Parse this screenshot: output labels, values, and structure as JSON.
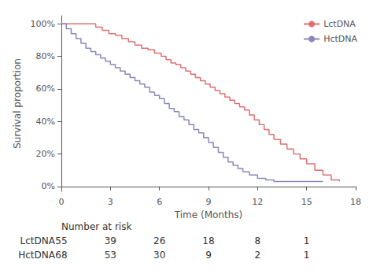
{
  "chart_data": {
    "type": "step",
    "xlabel": "Time (Months)",
    "ylabel": "Survival proportion",
    "xlim": [
      0,
      18
    ],
    "xticks": [
      0,
      3,
      6,
      9,
      12,
      15,
      18
    ],
    "ylim": [
      -0.03,
      1.05
    ],
    "yticks": [
      {
        "value": 0.0,
        "label": "0%"
      },
      {
        "value": 0.2,
        "label": "20%"
      },
      {
        "value": 0.4,
        "label": "40%"
      },
      {
        "value": 0.6,
        "label": "60%"
      },
      {
        "value": 0.8,
        "label": "80%"
      },
      {
        "value": 1.0,
        "label": "100%"
      }
    ],
    "grid": false,
    "legend": "upper right",
    "series": [
      {
        "name": "LctDNA",
        "color": "#E07070",
        "x": [
          0.0,
          1.8,
          2.1,
          2.5,
          2.9,
          3.3,
          3.7,
          4.1,
          4.5,
          4.9,
          5.3,
          5.7,
          6.1,
          6.4,
          6.7,
          7.0,
          7.3,
          7.6,
          7.9,
          8.2,
          8.5,
          8.8,
          9.1,
          9.4,
          9.7,
          10.0,
          10.3,
          10.6,
          10.9,
          11.2,
          11.5,
          11.8,
          12.1,
          12.4,
          12.7,
          13.0,
          13.4,
          13.8,
          14.2,
          14.6,
          15.0,
          15.5,
          16.0,
          16.5,
          17.0
        ],
        "values": [
          1.0,
          1.0,
          0.98,
          0.96,
          0.94,
          0.93,
          0.91,
          0.89,
          0.87,
          0.85,
          0.84,
          0.82,
          0.8,
          0.78,
          0.76,
          0.75,
          0.73,
          0.71,
          0.69,
          0.67,
          0.65,
          0.63,
          0.61,
          0.59,
          0.57,
          0.55,
          0.53,
          0.51,
          0.49,
          0.47,
          0.44,
          0.41,
          0.38,
          0.35,
          0.32,
          0.29,
          0.26,
          0.23,
          0.2,
          0.17,
          0.14,
          0.1,
          0.07,
          0.04,
          0.03
        ]
      },
      {
        "name": "HctDNA",
        "color": "#8888BB",
        "x": [
          0.0,
          0.3,
          0.6,
          0.9,
          1.2,
          1.5,
          1.8,
          2.1,
          2.4,
          2.7,
          3.0,
          3.3,
          3.6,
          3.9,
          4.2,
          4.5,
          4.8,
          5.1,
          5.4,
          5.7,
          6.0,
          6.3,
          6.6,
          6.9,
          7.2,
          7.5,
          7.8,
          8.1,
          8.4,
          8.7,
          9.0,
          9.3,
          9.6,
          9.9,
          10.2,
          10.5,
          10.8,
          11.1,
          11.5,
          12.0,
          12.5,
          13.0,
          14.0,
          15.0,
          16.0
        ],
        "values": [
          1.0,
          0.97,
          0.94,
          0.91,
          0.88,
          0.85,
          0.83,
          0.81,
          0.79,
          0.77,
          0.75,
          0.73,
          0.71,
          0.69,
          0.67,
          0.65,
          0.63,
          0.61,
          0.58,
          0.56,
          0.54,
          0.51,
          0.48,
          0.46,
          0.43,
          0.41,
          0.38,
          0.35,
          0.33,
          0.3,
          0.27,
          0.24,
          0.21,
          0.18,
          0.15,
          0.13,
          0.11,
          0.09,
          0.07,
          0.05,
          0.04,
          0.03,
          0.03,
          0.03,
          0.03
        ]
      }
    ],
    "risk_table": {
      "label": "Number at risk",
      "times": [
        0,
        3,
        6,
        9,
        12,
        15
      ],
      "rows": [
        {
          "name": "LctDNA",
          "values": [
            55,
            39,
            26,
            18,
            8,
            1
          ]
        },
        {
          "name": "HctDNA",
          "values": [
            68,
            53,
            30,
            9,
            2,
            1
          ]
        }
      ]
    }
  }
}
